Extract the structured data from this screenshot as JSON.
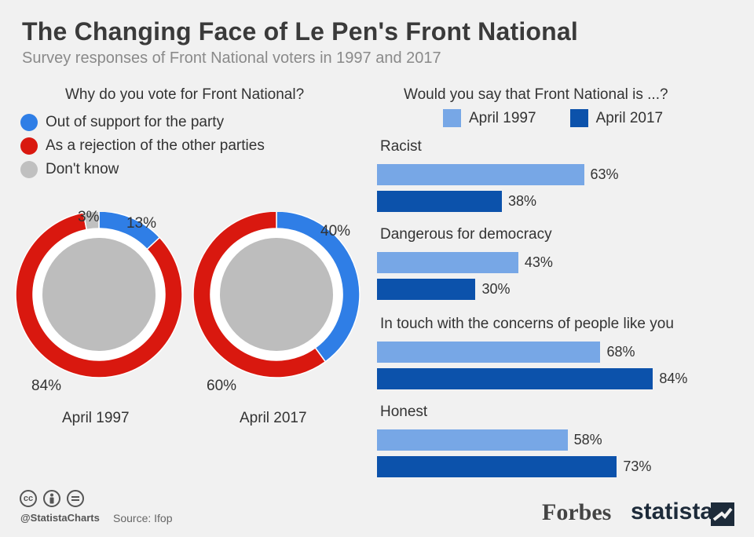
{
  "title": "The Changing Face of Le Pen's Front National",
  "subtitle": "Survey responses of Front National voters in 1997 and 2017",
  "footer": {
    "handle": "@StatistaCharts",
    "source": "Source: Ifop",
    "forbes": "Forbes",
    "statista": "statista"
  },
  "colors": {
    "support": "#2f7ee6",
    "rejection": "#d9180f",
    "dont_know": "#c0c0c0",
    "april_1997": "#77a7e6",
    "april_2017": "#0c52ab"
  },
  "chart_data": [
    {
      "type": "pie",
      "question": "Why do you vote for Front National?",
      "legend": [
        "Out of support for the party",
        "As a rejection of the other parties",
        "Don't know"
      ],
      "charts": [
        {
          "label": "April 1997",
          "slices": [
            {
              "name": "Out of support for the party",
              "value": 13,
              "label": "13%"
            },
            {
              "name": "As a rejection of the other parties",
              "value": 84,
              "label": "84%"
            },
            {
              "name": "Don't know",
              "value": 3,
              "label": "3%"
            }
          ]
        },
        {
          "label": "April 2017",
          "slices": [
            {
              "name": "Out of support for the party",
              "value": 40,
              "label": "40%"
            },
            {
              "name": "As a rejection of the other parties",
              "value": 60,
              "label": "60%"
            },
            {
              "name": "Don't know",
              "value": 0,
              "label": ""
            }
          ]
        }
      ]
    },
    {
      "type": "bar",
      "question": "Would you say that Front National is ...?",
      "categories": [
        "Racist",
        "Dangerous for democracy",
        "In touch with the concerns of people like you",
        "Honest"
      ],
      "series": [
        {
          "name": "April 1997",
          "values": [
            63,
            43,
            68,
            58
          ]
        },
        {
          "name": "April 2017",
          "values": [
            38,
            30,
            84,
            73
          ]
        }
      ],
      "unit": "%",
      "xlim": [
        0,
        100
      ]
    }
  ]
}
